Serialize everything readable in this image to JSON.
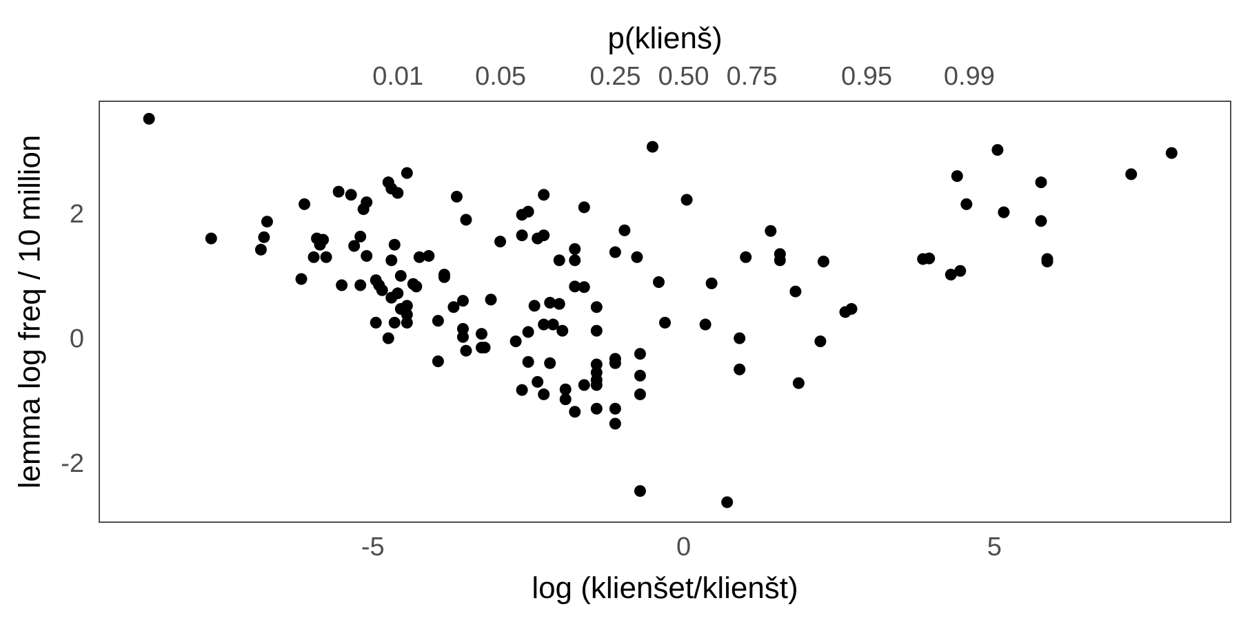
{
  "chart_data": {
    "type": "scatter",
    "title": "",
    "xlabel": "log (klienšet/klienšt)",
    "ylabel": "lemma log freq / 10 million",
    "secondary_xlabel": "p(klienš)",
    "xlim": [
      -9.4,
      8.8
    ],
    "ylim": [
      -2.95,
      3.8
    ],
    "x_ticks": [
      -5,
      0,
      5
    ],
    "x_tick_labels": [
      "-5",
      "0",
      "5"
    ],
    "y_ticks": [
      -2,
      0,
      2
    ],
    "y_tick_labels": [
      "-2",
      "0",
      "2"
    ],
    "secondary_x_ticks": [
      {
        "label": "0.01",
        "p": 0.01
      },
      {
        "label": "0.05",
        "p": 0.05
      },
      {
        "label": "0.25",
        "p": 0.25
      },
      {
        "label": "0.50",
        "p": 0.5
      },
      {
        "label": "0.75",
        "p": 0.75
      },
      {
        "label": "0.95",
        "p": 0.95
      },
      {
        "label": "0.99",
        "p": 0.99
      }
    ],
    "grid": false,
    "point_color": "#000000",
    "points": [
      [
        -8.6,
        3.52
      ],
      [
        -7.6,
        1.6
      ],
      [
        -6.8,
        1.42
      ],
      [
        -6.75,
        1.62
      ],
      [
        -6.7,
        1.87
      ],
      [
        -6.15,
        0.95
      ],
      [
        -6.1,
        2.15
      ],
      [
        -5.95,
        1.3
      ],
      [
        -5.9,
        1.6
      ],
      [
        -5.85,
        1.5
      ],
      [
        -5.8,
        1.58
      ],
      [
        -5.75,
        1.3
      ],
      [
        -5.55,
        2.35
      ],
      [
        -5.5,
        0.85
      ],
      [
        -5.35,
        2.3
      ],
      [
        -5.3,
        1.48
      ],
      [
        -5.2,
        0.85
      ],
      [
        -5.2,
        1.63
      ],
      [
        -5.15,
        2.07
      ],
      [
        -5.1,
        2.18
      ],
      [
        -5.1,
        1.32
      ],
      [
        -4.95,
        0.25
      ],
      [
        -4.95,
        0.93
      ],
      [
        -4.9,
        0.85
      ],
      [
        -4.85,
        0.77
      ],
      [
        -4.75,
        2.5
      ],
      [
        -4.75,
        0.0
      ],
      [
        -4.7,
        1.25
      ],
      [
        -4.7,
        0.65
      ],
      [
        -4.7,
        2.4
      ],
      [
        -4.65,
        0.25
      ],
      [
        -4.65,
        1.5
      ],
      [
        -4.6,
        0.72
      ],
      [
        -4.6,
        2.33
      ],
      [
        -4.55,
        0.47
      ],
      [
        -4.55,
        1.0
      ],
      [
        -4.45,
        0.38
      ],
      [
        -4.45,
        2.65
      ],
      [
        -4.45,
        0.52
      ],
      [
        -4.45,
        0.25
      ],
      [
        -4.35,
        0.87
      ],
      [
        -4.3,
        0.83
      ],
      [
        -4.25,
        1.3
      ],
      [
        -4.1,
        1.32
      ],
      [
        -3.95,
        -0.37
      ],
      [
        -3.95,
        0.28
      ],
      [
        -3.85,
        0.98
      ],
      [
        -3.85,
        1.02
      ],
      [
        -3.7,
        0.5
      ],
      [
        -3.65,
        2.27
      ],
      [
        -3.55,
        0.02
      ],
      [
        -3.55,
        0.6
      ],
      [
        -3.55,
        0.15
      ],
      [
        -3.5,
        -0.2
      ],
      [
        -3.5,
        1.9
      ],
      [
        -3.25,
        0.07
      ],
      [
        -3.25,
        -0.15
      ],
      [
        -3.2,
        -0.15
      ],
      [
        -3.1,
        0.62
      ],
      [
        -2.95,
        1.55
      ],
      [
        -2.7,
        -0.05
      ],
      [
        -2.6,
        1.98
      ],
      [
        -2.6,
        1.65
      ],
      [
        -2.6,
        -0.83
      ],
      [
        -2.5,
        0.1
      ],
      [
        -2.5,
        -0.38
      ],
      [
        -2.5,
        2.03
      ],
      [
        -2.4,
        0.52
      ],
      [
        -2.35,
        1.6
      ],
      [
        -2.35,
        -0.7
      ],
      [
        -2.25,
        1.65
      ],
      [
        -2.25,
        -0.9
      ],
      [
        -2.25,
        2.3
      ],
      [
        -2.25,
        0.22
      ],
      [
        -2.15,
        0.57
      ],
      [
        -2.15,
        -0.4
      ],
      [
        -2.1,
        0.22
      ],
      [
        -2.0,
        0.55
      ],
      [
        -2.0,
        1.25
      ],
      [
        -1.95,
        0.12
      ],
      [
        -1.9,
        -0.98
      ],
      [
        -1.9,
        -0.82
      ],
      [
        -1.75,
        0.83
      ],
      [
        -1.75,
        1.43
      ],
      [
        -1.75,
        1.25
      ],
      [
        -1.75,
        -1.18
      ],
      [
        -1.6,
        2.1
      ],
      [
        -1.6,
        -0.75
      ],
      [
        -1.6,
        0.82
      ],
      [
        -1.4,
        0.5
      ],
      [
        -1.4,
        0.12
      ],
      [
        -1.4,
        -0.42
      ],
      [
        -1.4,
        -0.55
      ],
      [
        -1.4,
        -0.67
      ],
      [
        -1.4,
        -0.75
      ],
      [
        -1.4,
        -1.13
      ],
      [
        -1.1,
        1.38
      ],
      [
        -1.1,
        -0.33
      ],
      [
        -1.1,
        -0.4
      ],
      [
        -1.1,
        -1.13
      ],
      [
        -1.1,
        -1.37
      ],
      [
        -0.95,
        1.73
      ],
      [
        -0.75,
        1.3
      ],
      [
        -0.7,
        -0.25
      ],
      [
        -0.7,
        -0.6
      ],
      [
        -0.7,
        -0.9
      ],
      [
        -0.7,
        -2.45
      ],
      [
        -0.5,
        3.07
      ],
      [
        -0.4,
        0.9
      ],
      [
        -0.3,
        0.25
      ],
      [
        0.05,
        2.22
      ],
      [
        0.35,
        0.22
      ],
      [
        0.45,
        0.88
      ],
      [
        0.7,
        -2.63
      ],
      [
        0.9,
        0.0
      ],
      [
        0.9,
        -0.5
      ],
      [
        1.0,
        1.3
      ],
      [
        1.4,
        1.72
      ],
      [
        1.55,
        1.25
      ],
      [
        1.55,
        1.35
      ],
      [
        1.8,
        0.75
      ],
      [
        1.85,
        -0.72
      ],
      [
        2.2,
        -0.05
      ],
      [
        2.25,
        1.23
      ],
      [
        2.6,
        0.42
      ],
      [
        2.7,
        0.47
      ],
      [
        3.85,
        1.27
      ],
      [
        3.95,
        1.28
      ],
      [
        4.3,
        1.02
      ],
      [
        4.4,
        2.6
      ],
      [
        4.45,
        1.08
      ],
      [
        4.55,
        2.15
      ],
      [
        5.05,
        3.02
      ],
      [
        5.15,
        2.02
      ],
      [
        5.75,
        2.5
      ],
      [
        5.75,
        1.88
      ],
      [
        5.85,
        1.27
      ],
      [
        5.85,
        1.23
      ],
      [
        7.2,
        2.63
      ],
      [
        7.85,
        2.97
      ]
    ]
  }
}
